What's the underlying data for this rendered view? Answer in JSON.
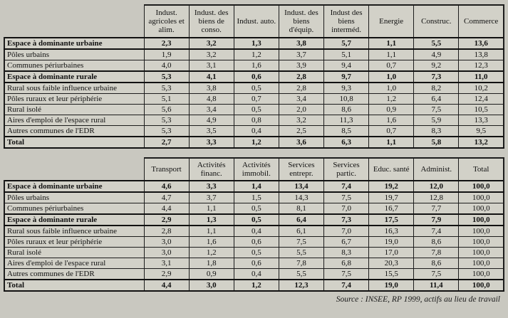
{
  "source_note": "Source : INSEE, RP 1999, actifs au lieu de travail",
  "table1": {
    "columns": [
      "Indust. agricoles et alim.",
      "Indust. des biens de conso.",
      "Indust. auto.",
      "Indust. des biens d'équip.",
      "Indust des biens interméd.",
      "Energie",
      "Construc.",
      "Commerce"
    ],
    "rows": [
      {
        "label": "Espace à dominante urbaine",
        "bold": true,
        "values": [
          "2,3",
          "3,2",
          "1,3",
          "3,8",
          "5,7",
          "1,1",
          "5,5",
          "13,6"
        ]
      },
      {
        "label": "Pôles urbains",
        "bold": false,
        "values": [
          "1,9",
          "3,2",
          "1,2",
          "3,7",
          "5,1",
          "1,1",
          "4,9",
          "13,8"
        ]
      },
      {
        "label": "Communes périurbaines",
        "bold": false,
        "values": [
          "4,0",
          "3,1",
          "1,6",
          "3,9",
          "9,4",
          "0,7",
          "9,2",
          "12,3"
        ]
      },
      {
        "label": "Espace à dominante rurale",
        "bold": true,
        "values": [
          "5,3",
          "4,1",
          "0,6",
          "2,8",
          "9,7",
          "1,0",
          "7,3",
          "11,0"
        ]
      },
      {
        "label": "Rural sous faible influence urbaine",
        "bold": false,
        "values": [
          "5,3",
          "3,8",
          "0,5",
          "2,8",
          "9,3",
          "1,0",
          "8,2",
          "10,2"
        ]
      },
      {
        "label": "Pôles ruraux et leur périphérie",
        "bold": false,
        "values": [
          "5,1",
          "4,8",
          "0,7",
          "3,4",
          "10,8",
          "1,2",
          "6,4",
          "12,4"
        ]
      },
      {
        "label": "Rural isolé",
        "bold": false,
        "values": [
          "5,6",
          "3,4",
          "0,5",
          "2,0",
          "8,6",
          "0,9",
          "7,5",
          "10,5"
        ]
      },
      {
        "label": "Aires d'emploi de l'espace rural",
        "bold": false,
        "values": [
          "5,3",
          "4,9",
          "0,8",
          "3,2",
          "11,3",
          "1,6",
          "5,9",
          "13,3"
        ]
      },
      {
        "label": "Autres communes de l'EDR",
        "bold": false,
        "values": [
          "5,3",
          "3,5",
          "0,4",
          "2,5",
          "8,5",
          "0,7",
          "8,3",
          "9,5"
        ]
      },
      {
        "label": "Total",
        "bold": true,
        "values": [
          "2,7",
          "3,3",
          "1,2",
          "3,6",
          "6,3",
          "1,1",
          "5,8",
          "13,2"
        ]
      }
    ]
  },
  "table2": {
    "columns": [
      "Transport",
      "Activités financ.",
      "Activités immobil.",
      "Services entrepr.",
      "Services partic.",
      "Educ. santé",
      "Administ.",
      "Total"
    ],
    "rows": [
      {
        "label": "Espace à dominante urbaine",
        "bold": true,
        "values": [
          "4,6",
          "3,3",
          "1,4",
          "13,4",
          "7,4",
          "19,2",
          "12,0",
          "100,0"
        ]
      },
      {
        "label": "Pôles urbains",
        "bold": false,
        "values": [
          "4,7",
          "3,7",
          "1,5",
          "14,3",
          "7,5",
          "19,7",
          "12,8",
          "100,0"
        ]
      },
      {
        "label": "Communes périurbaines",
        "bold": false,
        "values": [
          "4,4",
          "1,1",
          "0,5",
          "8,1",
          "7,0",
          "16,7",
          "7,7",
          "100,0"
        ]
      },
      {
        "label": "Espace à dominante rurale",
        "bold": true,
        "values": [
          "2,9",
          "1,3",
          "0,5",
          "6,4",
          "7,3",
          "17,5",
          "7,9",
          "100,0"
        ]
      },
      {
        "label": "Rural sous faible influence urbaine",
        "bold": false,
        "values": [
          "2,8",
          "1,1",
          "0,4",
          "6,1",
          "7,0",
          "16,3",
          "7,4",
          "100,0"
        ]
      },
      {
        "label": "Pôles ruraux et leur périphérie",
        "bold": false,
        "values": [
          "3,0",
          "1,6",
          "0,6",
          "7,5",
          "6,7",
          "19,0",
          "8,6",
          "100,0"
        ]
      },
      {
        "label": "Rural isolé",
        "bold": false,
        "values": [
          "3,0",
          "1,2",
          "0,5",
          "5,5",
          "8,3",
          "17,0",
          "7,8",
          "100,0"
        ]
      },
      {
        "label": "Aires d'emploi de l'espace rural",
        "bold": false,
        "values": [
          "3,1",
          "1,8",
          "0,6",
          "7,8",
          "6,8",
          "20,3",
          "8,6",
          "100,0"
        ]
      },
      {
        "label": "Autres communes de l'EDR",
        "bold": false,
        "values": [
          "2,9",
          "0,9",
          "0,4",
          "5,5",
          "7,5",
          "15,5",
          "7,5",
          "100,0"
        ]
      },
      {
        "label": "Total",
        "bold": true,
        "values": [
          "4,4",
          "3,0",
          "1,2",
          "12,3",
          "7,4",
          "19,0",
          "11,4",
          "100,0"
        ]
      }
    ]
  }
}
